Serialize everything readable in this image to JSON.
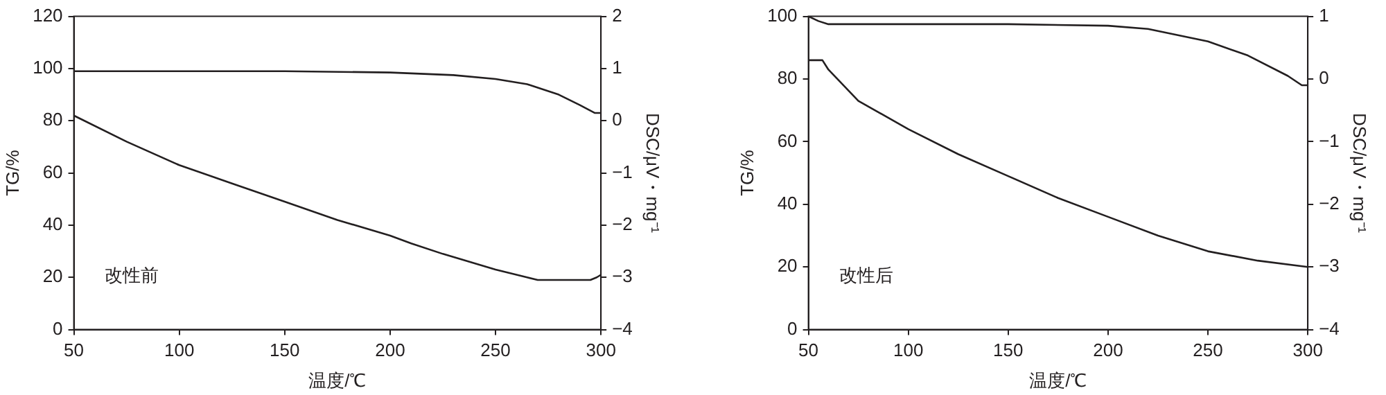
{
  "chart_data": [
    {
      "type": "line",
      "xlabel": "温度/℃",
      "ylabel": "TG/%",
      "y2label": "DSC/μV・mg⁻¹",
      "annotations": [
        "改性前"
      ],
      "xlim": [
        50,
        300
      ],
      "xticks": [
        50,
        100,
        150,
        200,
        250,
        300
      ],
      "ylim": [
        0,
        120
      ],
      "yticks": [
        0,
        20,
        40,
        60,
        80,
        100,
        120
      ],
      "y2lim": [
        -4,
        2
      ],
      "y2ticks": [
        {
          "value": -4,
          "label": "−4"
        },
        {
          "value": -3,
          "label": "−3"
        },
        {
          "value": -2,
          "label": "−2"
        },
        {
          "value": -1,
          "label": "−1"
        },
        0,
        1,
        2
      ],
      "series": [
        {
          "color": "#231f20",
          "x": [
            50,
            100,
            150,
            200,
            230,
            250,
            265,
            280,
            290,
            297,
            300
          ],
          "values": [
            99,
            99,
            99,
            98.5,
            97.5,
            96,
            94,
            90,
            86,
            83,
            83
          ]
        },
        {
          "color": "#231f20",
          "axis": "y2",
          "x": [
            50,
            75,
            100,
            125,
            150,
            175,
            200,
            210,
            225,
            250,
            265,
            270,
            295,
            298,
            300
          ],
          "values": [
            0.1,
            -0.4,
            -0.85,
            -1.2,
            -1.55,
            -1.9,
            -2.2,
            -2.35,
            -2.55,
            -2.85,
            -3,
            -3.05,
            -3.05,
            -3,
            -2.95
          ]
        }
      ]
    },
    {
      "type": "line",
      "xlabel": "温度/℃",
      "ylabel": "TG/%",
      "y2label": "DSC/μV・mg⁻¹",
      "annotations": [
        "改性后"
      ],
      "xlim": [
        50,
        300
      ],
      "xticks": [
        50,
        100,
        150,
        200,
        250,
        300
      ],
      "ylim": [
        0,
        100
      ],
      "yticks": [
        0,
        20,
        40,
        60,
        80,
        100
      ],
      "y2lim": [
        -4,
        1
      ],
      "y2ticks": [
        {
          "value": -4,
          "label": "−4"
        },
        {
          "value": -3,
          "label": "−3"
        },
        {
          "value": -2,
          "label": "−2"
        },
        {
          "value": -1,
          "label": "−1"
        },
        0,
        1
      ],
      "series": [
        {
          "color": "#231f20",
          "x": [
            50,
            55,
            60,
            100,
            150,
            200,
            220,
            250,
            270,
            290,
            297,
            300
          ],
          "values": [
            100,
            98.5,
            97.5,
            97.5,
            97.5,
            97,
            96,
            92,
            87.5,
            81,
            78,
            78
          ]
        },
        {
          "color": "#231f20",
          "axis": "y2",
          "x": [
            50,
            57,
            60,
            75,
            100,
            125,
            150,
            175,
            200,
            225,
            250,
            275,
            300
          ],
          "values": [
            0.3,
            0.3,
            0.15,
            -0.35,
            -0.8,
            -1.2,
            -1.55,
            -1.9,
            -2.2,
            -2.5,
            -2.75,
            -2.9,
            -3
          ]
        }
      ]
    }
  ]
}
